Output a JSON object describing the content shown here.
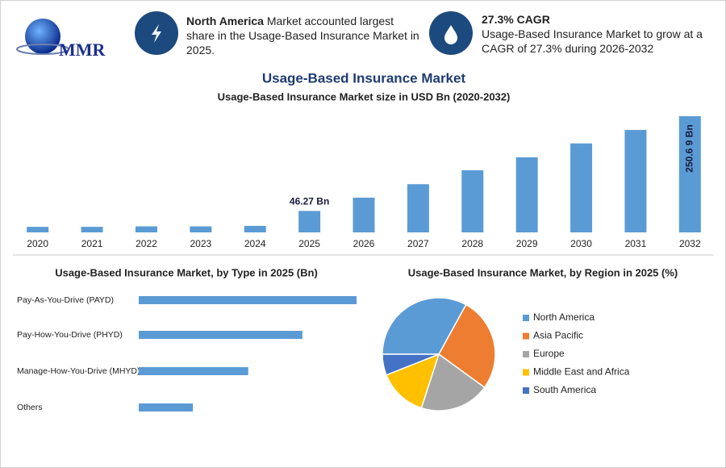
{
  "header": {
    "logo": "MMR",
    "info": [
      {
        "highlight": "North America",
        "text": "Market accounted largest share in the Usage-Based Insurance Market in 2025."
      },
      {
        "title": "27.3% CAGR",
        "text": "Usage-Based Insurance Market to grow at a CAGR of 27.3% during 2026-2032"
      }
    ]
  },
  "chart_data": [
    {
      "type": "bar",
      "title": "Usage-Based Insurance Market",
      "subtitle": "Usage-Based Insurance Market size in USD Bn (2020-2032)",
      "categories": [
        "2020",
        "2021",
        "2022",
        "2023",
        "2024",
        "2025",
        "2026",
        "2027",
        "2028",
        "2029",
        "2030",
        "2031",
        "2032"
      ],
      "values": [
        12,
        12,
        13,
        13,
        14,
        46.27,
        75,
        104,
        134,
        162,
        192,
        221,
        250.69
      ],
      "value_labels": [
        null,
        null,
        null,
        null,
        null,
        "46.27 Bn",
        null,
        null,
        null,
        null,
        null,
        null,
        "250.6 9 Bn"
      ],
      "color": "#5b9bd5"
    },
    {
      "type": "bar",
      "orientation": "horizontal",
      "title": "Usage-Based Insurance Market, by Type in 2025 (Bn)",
      "categories": [
        "Pay-As-You-Drive (PAYD)",
        "Pay-How-You-Drive (PHYD)",
        "Manage-How-You-Drive (MHYD)",
        "Others"
      ],
      "values": [
        18.5,
        13.9,
        9.3,
        4.6
      ],
      "color": "#5b9bd5"
    },
    {
      "type": "pie",
      "title": "Usage-Based Insurance Market, by Region in 2025 (%)",
      "categories": [
        "North America",
        "Asia Pacific",
        "Europe",
        "Middle East and Africa",
        "South America"
      ],
      "values": [
        33,
        27,
        20,
        14,
        6
      ],
      "colors": [
        "#5b9bd5",
        "#ed7d31",
        "#a5a5a5",
        "#ffc000",
        "#4472c4"
      ]
    }
  ]
}
